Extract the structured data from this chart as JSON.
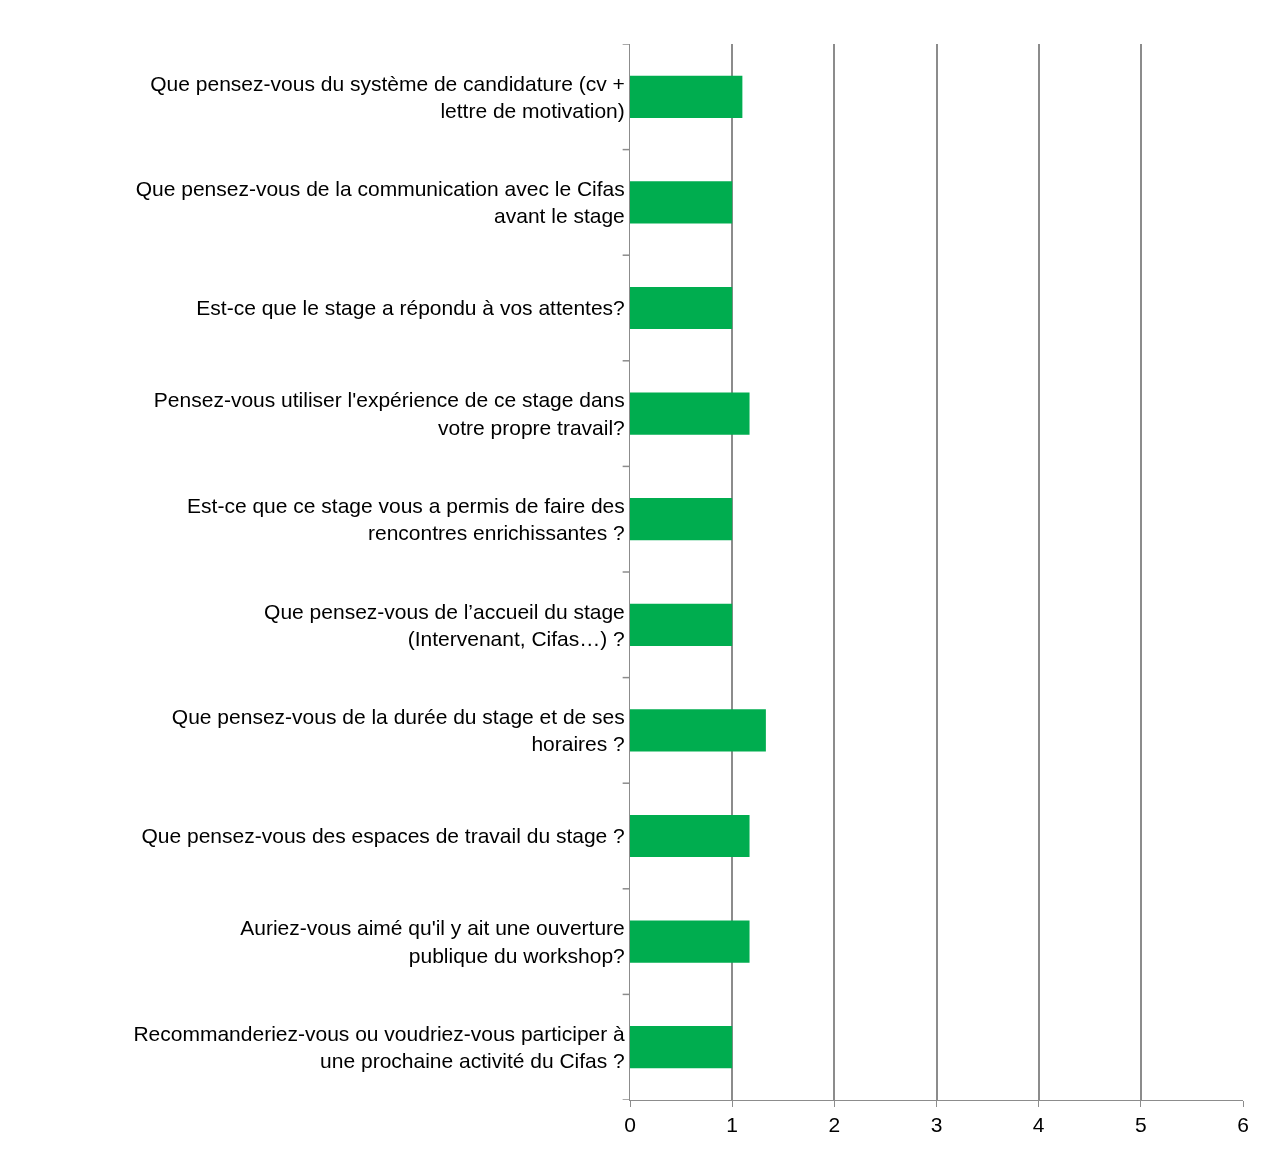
{
  "chart_data": {
    "type": "bar",
    "orientation": "horizontal",
    "categories": [
      "Que pensez-vous du système de candidature (cv + lettre de motivation)",
      "Que pensez-vous de la communication avec le Cifas avant le stage",
      "Est-ce que le stage a répondu à vos attentes?",
      "Pensez-vous utiliser l'expérience de ce stage dans votre propre travail?",
      "Est-ce que ce stage vous a permis de faire des rencontres enrichissantes ?",
      "Que pensez-vous de l’accueil du stage (Intervenant, Cifas…) ?",
      "Que pensez-vous de la durée du stage et de ses horaires ?",
      "Que pensez-vous des espaces de travail du stage ?",
      "Auriez-vous aimé qu'il y ait une ouverture publique du workshop?",
      "Recommanderiez-vous ou voudriez-vous participer à une prochaine activité du Cifas ?"
    ],
    "values": [
      1.1,
      1.0,
      1.0,
      1.17,
      1.0,
      1.0,
      1.33,
      1.17,
      1.17,
      1.0
    ],
    "color": "#00ad4f",
    "xlim": [
      0,
      6
    ],
    "xticks": [
      0,
      1,
      2,
      3,
      4,
      5,
      6
    ],
    "grid": "x"
  }
}
